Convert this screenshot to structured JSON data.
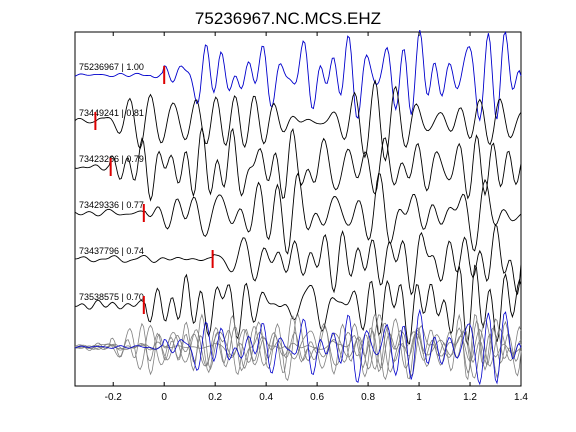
{
  "chart_data": {
    "type": "line",
    "title": "75236967.NC.MCS.EHZ",
    "xlabel": "",
    "ylabel": "",
    "xlim": [
      -0.35,
      1.4
    ],
    "xticks": [
      {
        "value": -0.2,
        "label": "-0.2"
      },
      {
        "value": 0,
        "label": "0"
      },
      {
        "value": 0.2,
        "label": "0.2"
      },
      {
        "value": 0.4,
        "label": "0.4"
      },
      {
        "value": 0.6,
        "label": "0.6"
      },
      {
        "value": 0.8,
        "label": "0.8"
      },
      {
        "value": 1,
        "label": "1"
      },
      {
        "value": 1.2,
        "label": "1.2"
      },
      {
        "value": 1.4,
        "label": "1.4"
      }
    ],
    "grid": false,
    "colors": {
      "reference": "#0000cc",
      "trace": "#000000",
      "pick": "#dd0000",
      "overlay": "#808080"
    },
    "series": [
      {
        "name": "75236967 | 1.00",
        "pick_time": 0.0,
        "color": "#0000cc",
        "seed": 1
      },
      {
        "name": "73449241 | 0.81",
        "pick_time": -0.27,
        "color": "#000000",
        "seed": 2
      },
      {
        "name": "73423266 | 0.79",
        "pick_time": -0.21,
        "color": "#000000",
        "seed": 3
      },
      {
        "name": "73429336 | 0.77",
        "pick_time": -0.08,
        "color": "#000000",
        "seed": 4
      },
      {
        "name": "73437796 | 0.74",
        "pick_time": 0.19,
        "color": "#000000",
        "seed": 5
      },
      {
        "name": "73538575 | 0.70",
        "pick_time": -0.08,
        "color": "#000000",
        "seed": 6
      }
    ],
    "overlay": {
      "description": "stacked overlay of all traces",
      "reference_color": "#0000cc",
      "others_color": "#808080"
    }
  }
}
